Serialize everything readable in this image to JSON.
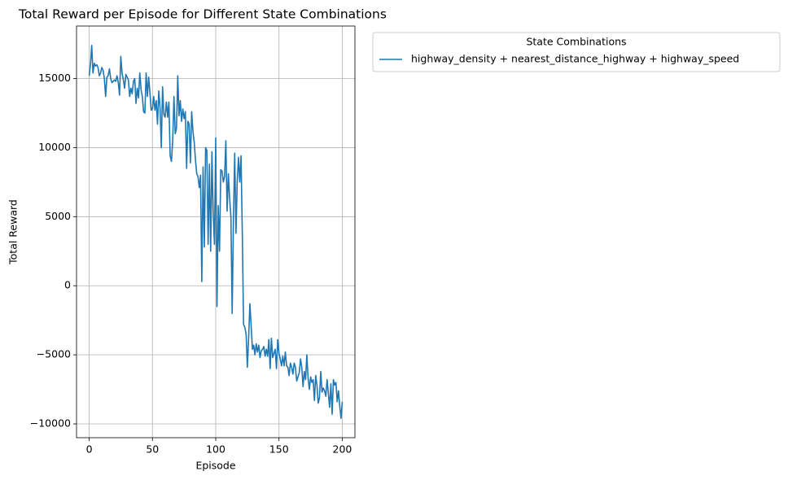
{
  "chart_data": {
    "type": "line",
    "title": "Total Reward per Episode for Different State Combinations",
    "x_label": "Episode",
    "y_label": "Total Reward",
    "legend_title": "State Combinations",
    "legend_loc": "upper left",
    "grid": true,
    "xlim": [
      -10,
      210
    ],
    "xticks": [
      0,
      50,
      100,
      150,
      200
    ],
    "ylim": [
      -11000,
      18800
    ],
    "yticks": [
      {
        "value": -10000,
        "label": "−10000"
      },
      {
        "value": -5000,
        "label": "−5000"
      },
      0,
      5000,
      10000,
      15000
    ],
    "x": [
      0,
      1,
      2,
      3,
      4,
      5,
      6,
      7,
      8,
      9,
      10,
      11,
      12,
      13,
      14,
      15,
      16,
      17,
      18,
      19,
      20,
      21,
      22,
      23,
      24,
      25,
      26,
      27,
      28,
      29,
      30,
      31,
      32,
      33,
      34,
      35,
      36,
      37,
      38,
      39,
      40,
      41,
      42,
      43,
      44,
      45,
      46,
      47,
      48,
      49,
      50,
      51,
      52,
      53,
      54,
      55,
      56,
      57,
      58,
      59,
      60,
      61,
      62,
      63,
      64,
      65,
      66,
      67,
      68,
      69,
      70,
      71,
      72,
      73,
      74,
      75,
      76,
      77,
      78,
      79,
      80,
      81,
      82,
      83,
      84,
      85,
      86,
      87,
      88,
      89,
      90,
      91,
      92,
      93,
      94,
      95,
      96,
      97,
      98,
      99,
      100,
      101,
      102,
      103,
      104,
      105,
      106,
      107,
      108,
      109,
      110,
      111,
      112,
      113,
      114,
      115,
      116,
      117,
      118,
      119,
      120,
      121,
      122,
      123,
      124,
      125,
      126,
      127,
      128,
      129,
      130,
      131,
      132,
      133,
      134,
      135,
      136,
      137,
      138,
      139,
      140,
      141,
      142,
      143,
      144,
      145,
      146,
      147,
      148,
      149,
      150,
      151,
      152,
      153,
      154,
      155,
      156,
      157,
      158,
      159,
      160,
      161,
      162,
      163,
      164,
      165,
      166,
      167,
      168,
      169,
      170,
      171,
      172,
      173,
      174,
      175,
      176,
      177,
      178,
      179,
      180,
      181,
      182,
      183,
      184,
      185,
      186,
      187,
      188,
      189,
      190,
      191,
      192,
      193,
      194,
      195,
      196,
      197,
      198,
      199,
      200
    ],
    "series": [
      {
        "name": "highway_density + nearest_distance_highway + highway_speed",
        "color": "#1f77b4",
        "values": [
          15200,
          16000,
          17400,
          15400,
          16100,
          15900,
          16000,
          15800,
          15200,
          15400,
          15800,
          15600,
          15000,
          13700,
          15100,
          15200,
          15700,
          15000,
          14700,
          14800,
          14900,
          14800,
          15200,
          14700,
          13800,
          16600,
          15400,
          14900,
          14300,
          15300,
          15100,
          14900,
          13700,
          14300,
          13900,
          14800,
          15000,
          13200,
          14300,
          13600,
          15400,
          14200,
          13700,
          12600,
          12500,
          15400,
          13700,
          15100,
          14000,
          12700,
          12800,
          13700,
          12700,
          13400,
          11700,
          14100,
          12900,
          10000,
          14400,
          12400,
          12200,
          13300,
          12200,
          13300,
          9400,
          9000,
          10500,
          13700,
          11000,
          11400,
          15200,
          12300,
          13400,
          11900,
          12800,
          12100,
          12600,
          8500,
          11900,
          11700,
          8900,
          12600,
          11200,
          10400,
          9100,
          8100,
          7900,
          7100,
          8000,
          300,
          8600,
          2800,
          10000,
          9800,
          3000,
          8800,
          2500,
          9700,
          5200,
          3000,
          10700,
          -1500,
          5800,
          2500,
          8400,
          8300,
          7500,
          7900,
          10500,
          5400,
          8100,
          6300,
          5000,
          -2000,
          4800,
          9600,
          3800,
          7600,
          9300,
          7500,
          9400,
          3800,
          -2800,
          -3000,
          -3500,
          -5900,
          -3800,
          -1300,
          -2900,
          -4600,
          -4300,
          -5000,
          -4200,
          -4800,
          -4300,
          -5200,
          -4700,
          -4600,
          -4400,
          -5100,
          -4600,
          -5100,
          -3900,
          -6000,
          -3800,
          -5200,
          -4900,
          -4600,
          -6000,
          -3900,
          -4900,
          -5300,
          -5800,
          -5100,
          -5800,
          -4800,
          -5800,
          -5900,
          -6500,
          -5600,
          -5900,
          -6400,
          -5600,
          -5900,
          -6900,
          -6600,
          -6300,
          -5300,
          -5900,
          -7300,
          -6200,
          -6800,
          -5000,
          -6700,
          -7500,
          -6600,
          -7000,
          -6800,
          -8300,
          -6500,
          -7200,
          -8500,
          -8100,
          -6200,
          -7700,
          -7400,
          -7600,
          -8000,
          -6800,
          -7800,
          -8800,
          -7100,
          -9300,
          -6800,
          -7200,
          -7000,
          -8400,
          -7600,
          -8700,
          -9600,
          -8400
        ]
      }
    ]
  }
}
